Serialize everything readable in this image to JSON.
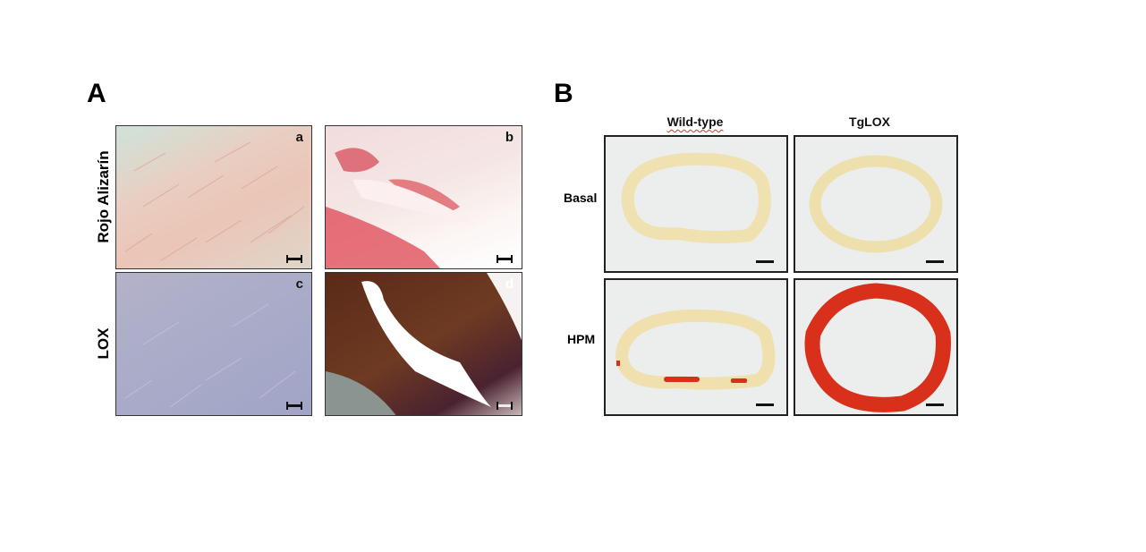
{
  "panel_a": {
    "label": "A",
    "row_labels": [
      "Rojo Alizarín",
      "LOX"
    ],
    "images": [
      {
        "letter": "a",
        "stain": "alizarin red",
        "tint": "#e9c3b5"
      },
      {
        "letter": "b",
        "stain": "alizarin red",
        "tint": "#e0606a"
      },
      {
        "letter": "c",
        "stain": "LOX",
        "tint": "#a4a6c6"
      },
      {
        "letter": "d",
        "stain": "LOX",
        "tint": "#5a2a18"
      }
    ]
  },
  "panel_b": {
    "label": "B",
    "column_headers": [
      "Wild-type",
      "TgLOX"
    ],
    "row_labels": [
      "Basal",
      "HPM"
    ],
    "colors": {
      "wall": "#efe2b0",
      "calcification": "#d8301a"
    }
  }
}
